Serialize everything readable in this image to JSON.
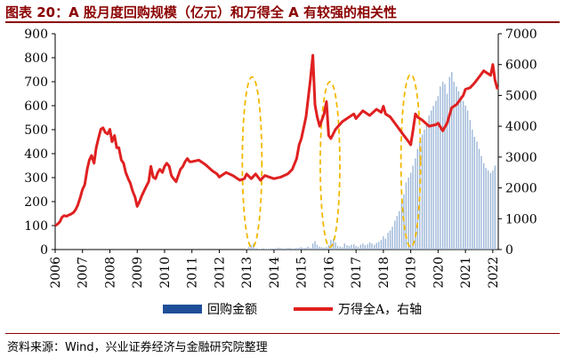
{
  "title": "图表 20：A 股月度回购规模（亿元）和万得全 A 有较强的相关性",
  "source": "资料来源：Wind，兴业证券经济与金融研究院整理",
  "colors": {
    "bars": "#1f4e99",
    "bars_light": "#9db7d8",
    "line": "#e02020",
    "highlight": "#f2b800",
    "title": "#8b0000"
  },
  "chart_data": {
    "type": "bar",
    "title": "A 股月度回购规模（亿元）和万得全 A 有较强的相关性",
    "x_range": [
      2006.0,
      2022.2
    ],
    "x_tick_labels": [
      "2006",
      "2007",
      "2008",
      "2009",
      "2010",
      "2011",
      "2012",
      "2013",
      "2014",
      "2015",
      "2016",
      "2017",
      "2018",
      "2019",
      "2020",
      "2021",
      "2022"
    ],
    "left_axis": {
      "ylim": [
        0,
        900
      ],
      "ticks": [
        "0",
        "100",
        "200",
        "300",
        "400",
        "500",
        "600",
        "700",
        "800",
        "900"
      ]
    },
    "right_axis": {
      "ylim": [
        0,
        7000
      ],
      "ticks": [
        "0",
        "1000",
        "2000",
        "3000",
        "4000",
        "5000",
        "6000",
        "7000"
      ]
    },
    "legend": {
      "position": "bottom",
      "entries": [
        "回购金额",
        "万得全A，右轴"
      ]
    },
    "series": [
      {
        "name": "回购金额",
        "axis": "left",
        "type": "bar",
        "x": [
          2013.0,
          2013.08,
          2013.17,
          2013.25,
          2013.33,
          2013.42,
          2013.5,
          2013.58,
          2013.67,
          2013.75,
          2013.83,
          2013.92,
          2014.0,
          2014.08,
          2014.17,
          2014.25,
          2014.33,
          2014.42,
          2014.5,
          2014.58,
          2014.67,
          2014.75,
          2014.83,
          2014.92,
          2015.0,
          2015.08,
          2015.17,
          2015.25,
          2015.33,
          2015.42,
          2015.5,
          2015.58,
          2015.67,
          2015.75,
          2015.83,
          2015.92,
          2016.0,
          2016.08,
          2016.17,
          2016.25,
          2016.33,
          2016.42,
          2016.5,
          2016.58,
          2016.67,
          2016.75,
          2016.83,
          2016.92,
          2017.0,
          2017.08,
          2017.17,
          2017.25,
          2017.33,
          2017.42,
          2017.5,
          2017.58,
          2017.67,
          2017.75,
          2017.83,
          2017.92,
          2018.0,
          2018.08,
          2018.17,
          2018.25,
          2018.33,
          2018.42,
          2018.5,
          2018.58,
          2018.67,
          2018.75,
          2018.83,
          2018.92,
          2019.0,
          2019.08,
          2019.17,
          2019.25,
          2019.33,
          2019.42,
          2019.5,
          2019.58,
          2019.67,
          2019.75,
          2019.83,
          2019.92,
          2020.0,
          2020.08,
          2020.17,
          2020.25,
          2020.33,
          2020.42,
          2020.5,
          2020.58,
          2020.67,
          2020.75,
          2020.83,
          2020.92,
          2021.0,
          2021.08,
          2021.17,
          2021.25,
          2021.33,
          2021.42,
          2021.5,
          2021.58,
          2021.67,
          2021.75,
          2021.83,
          2021.92,
          2022.0,
          2022.08
        ],
        "values": [
          2,
          10,
          18,
          25,
          5,
          3,
          2,
          4,
          3,
          2,
          3,
          4,
          3,
          5,
          8,
          6,
          4,
          5,
          6,
          7,
          4,
          5,
          6,
          8,
          10,
          6,
          8,
          12,
          6,
          25,
          35,
          20,
          12,
          10,
          8,
          10,
          18,
          40,
          45,
          30,
          15,
          12,
          10,
          25,
          18,
          15,
          20,
          22,
          15,
          12,
          20,
          25,
          18,
          22,
          30,
          25,
          20,
          28,
          32,
          40,
          55,
          45,
          70,
          80,
          95,
          120,
          140,
          160,
          210,
          230,
          280,
          300,
          320,
          350,
          380,
          420,
          450,
          480,
          500,
          520,
          560,
          580,
          600,
          620,
          640,
          680,
          700,
          690,
          650,
          720,
          740,
          700,
          680,
          660,
          640,
          620,
          600,
          580,
          540,
          500,
          470,
          450,
          420,
          390,
          360,
          340,
          330,
          320,
          330,
          350
        ]
      },
      {
        "name": "万得全A，右轴",
        "axis": "right",
        "type": "line",
        "x": [
          2006.0,
          2006.08,
          2006.17,
          2006.25,
          2006.33,
          2006.42,
          2006.5,
          2006.58,
          2006.67,
          2006.75,
          2006.83,
          2006.92,
          2007.0,
          2007.08,
          2007.17,
          2007.25,
          2007.33,
          2007.42,
          2007.5,
          2007.58,
          2007.67,
          2007.75,
          2007.83,
          2007.92,
          2008.0,
          2008.08,
          2008.17,
          2008.25,
          2008.33,
          2008.42,
          2008.5,
          2008.58,
          2008.67,
          2008.75,
          2008.83,
          2008.92,
          2009.0,
          2009.08,
          2009.17,
          2009.25,
          2009.33,
          2009.42,
          2009.5,
          2009.58,
          2009.67,
          2009.75,
          2009.83,
          2009.92,
          2010.0,
          2010.08,
          2010.17,
          2010.25,
          2010.33,
          2010.42,
          2010.5,
          2010.58,
          2010.67,
          2010.75,
          2010.83,
          2010.92,
          2011.0,
          2011.25,
          2011.5,
          2011.75,
          2011.92,
          2012.0,
          2012.25,
          2012.5,
          2012.75,
          2012.92,
          2013.0,
          2013.17,
          2013.33,
          2013.5,
          2013.67,
          2013.83,
          2014.0,
          2014.25,
          2014.5,
          2014.67,
          2014.83,
          2014.92,
          2015.0,
          2015.17,
          2015.33,
          2015.42,
          2015.5,
          2015.58,
          2015.67,
          2015.75,
          2015.83,
          2015.92,
          2016.0,
          2016.08,
          2016.25,
          2016.5,
          2016.75,
          2016.92,
          2017.0,
          2017.25,
          2017.5,
          2017.75,
          2017.92,
          2018.0,
          2018.08,
          2018.25,
          2018.5,
          2018.75,
          2018.92,
          2019.0,
          2019.08,
          2019.17,
          2019.25,
          2019.42,
          2019.67,
          2019.92,
          2020.0,
          2020.17,
          2020.33,
          2020.5,
          2020.67,
          2020.92,
          2021.0,
          2021.17,
          2021.33,
          2021.5,
          2021.67,
          2021.92,
          2022.0,
          2022.08,
          2022.17
        ],
        "values": [
          780,
          820,
          900,
          1050,
          1100,
          1080,
          1120,
          1150,
          1200,
          1300,
          1450,
          1700,
          1950,
          2100,
          2600,
          2900,
          3050,
          2800,
          3300,
          3600,
          3900,
          3950,
          3800,
          3750,
          3900,
          3500,
          3700,
          3300,
          3300,
          2900,
          2800,
          2500,
          2300,
          2150,
          1900,
          1700,
          1400,
          1550,
          1750,
          1900,
          2050,
          2200,
          2700,
          2350,
          2300,
          2500,
          2600,
          2500,
          2700,
          2800,
          2700,
          2400,
          2300,
          2200,
          2400,
          2600,
          2700,
          2850,
          2950,
          2850,
          2850,
          2900,
          2750,
          2550,
          2450,
          2350,
          2500,
          2400,
          2250,
          2300,
          2450,
          2300,
          2450,
          2250,
          2400,
          2350,
          2300,
          2350,
          2450,
          2600,
          2950,
          3400,
          3600,
          4300,
          5500,
          6300,
          4700,
          4300,
          4000,
          4200,
          4400,
          4800,
          3700,
          3600,
          3900,
          4150,
          4300,
          4400,
          4250,
          4500,
          4350,
          4550,
          4450,
          4650,
          4400,
          4300,
          4000,
          3700,
          3500,
          3400,
          3850,
          4400,
          4300,
          4200,
          4000,
          4050,
          4100,
          3850,
          4100,
          4600,
          4700,
          5000,
          5200,
          5250,
          5400,
          5600,
          5800,
          5650,
          6000,
          5500,
          5200
        ]
      }
    ],
    "annotations": [
      {
        "type": "dashed-ellipse",
        "x_center": 2013.2,
        "y_left_range": [
          8,
          720
        ],
        "label": ""
      },
      {
        "type": "dashed-ellipse",
        "x_center": 2016.05,
        "y_left_range": [
          10,
          700
        ],
        "label": ""
      },
      {
        "type": "dashed-ellipse",
        "x_center": 2019.0,
        "y_left_range": [
          10,
          730
        ],
        "label": ""
      }
    ]
  }
}
